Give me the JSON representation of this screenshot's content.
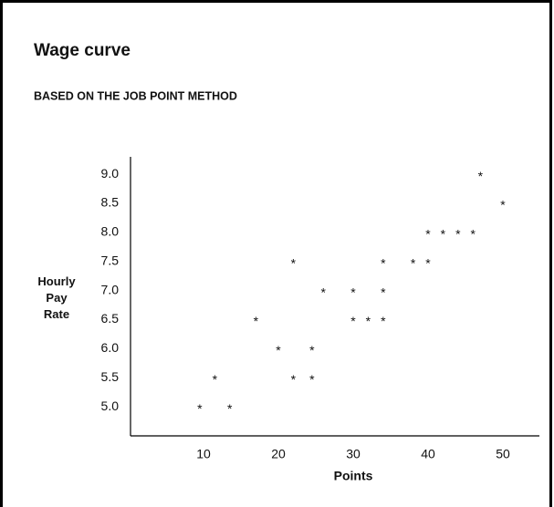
{
  "chart_data": {
    "type": "scatter",
    "title": "Wage curve",
    "subtitle": "BASED ON THE JOB POINT METHOD",
    "xlabel": "Points",
    "ylabel": "Hourly Pay Rate",
    "marker": "*",
    "color": "#000000",
    "x": [
      9.5,
      13.5,
      11.5,
      17,
      20,
      22,
      22,
      24.5,
      24.5,
      26,
      30,
      30,
      32,
      34,
      34,
      34,
      38,
      40,
      40,
      42,
      44,
      46,
      47,
      50
    ],
    "values": [
      5.0,
      5.0,
      5.5,
      6.5,
      6.0,
      5.5,
      7.5,
      5.5,
      6.0,
      7.0,
      7.0,
      6.5,
      6.5,
      6.5,
      7.0,
      7.5,
      7.5,
      7.5,
      8.0,
      8.0,
      8.0,
      8.0,
      9.0,
      8.5
    ],
    "xlim": [
      0,
      55
    ],
    "ylim": [
      4.5,
      9.3
    ],
    "xticks": [
      10,
      20,
      30,
      40,
      50
    ],
    "yticks": [
      {
        "value": 9,
        "label": "9.0"
      },
      8.5,
      {
        "value": 8,
        "label": "8.0"
      },
      7.5,
      {
        "value": 7,
        "label": "7.0"
      },
      6.5,
      {
        "value": 6,
        "label": "6.0"
      },
      5.5,
      {
        "value": 5,
        "label": "5.0"
      }
    ],
    "grid": false
  }
}
